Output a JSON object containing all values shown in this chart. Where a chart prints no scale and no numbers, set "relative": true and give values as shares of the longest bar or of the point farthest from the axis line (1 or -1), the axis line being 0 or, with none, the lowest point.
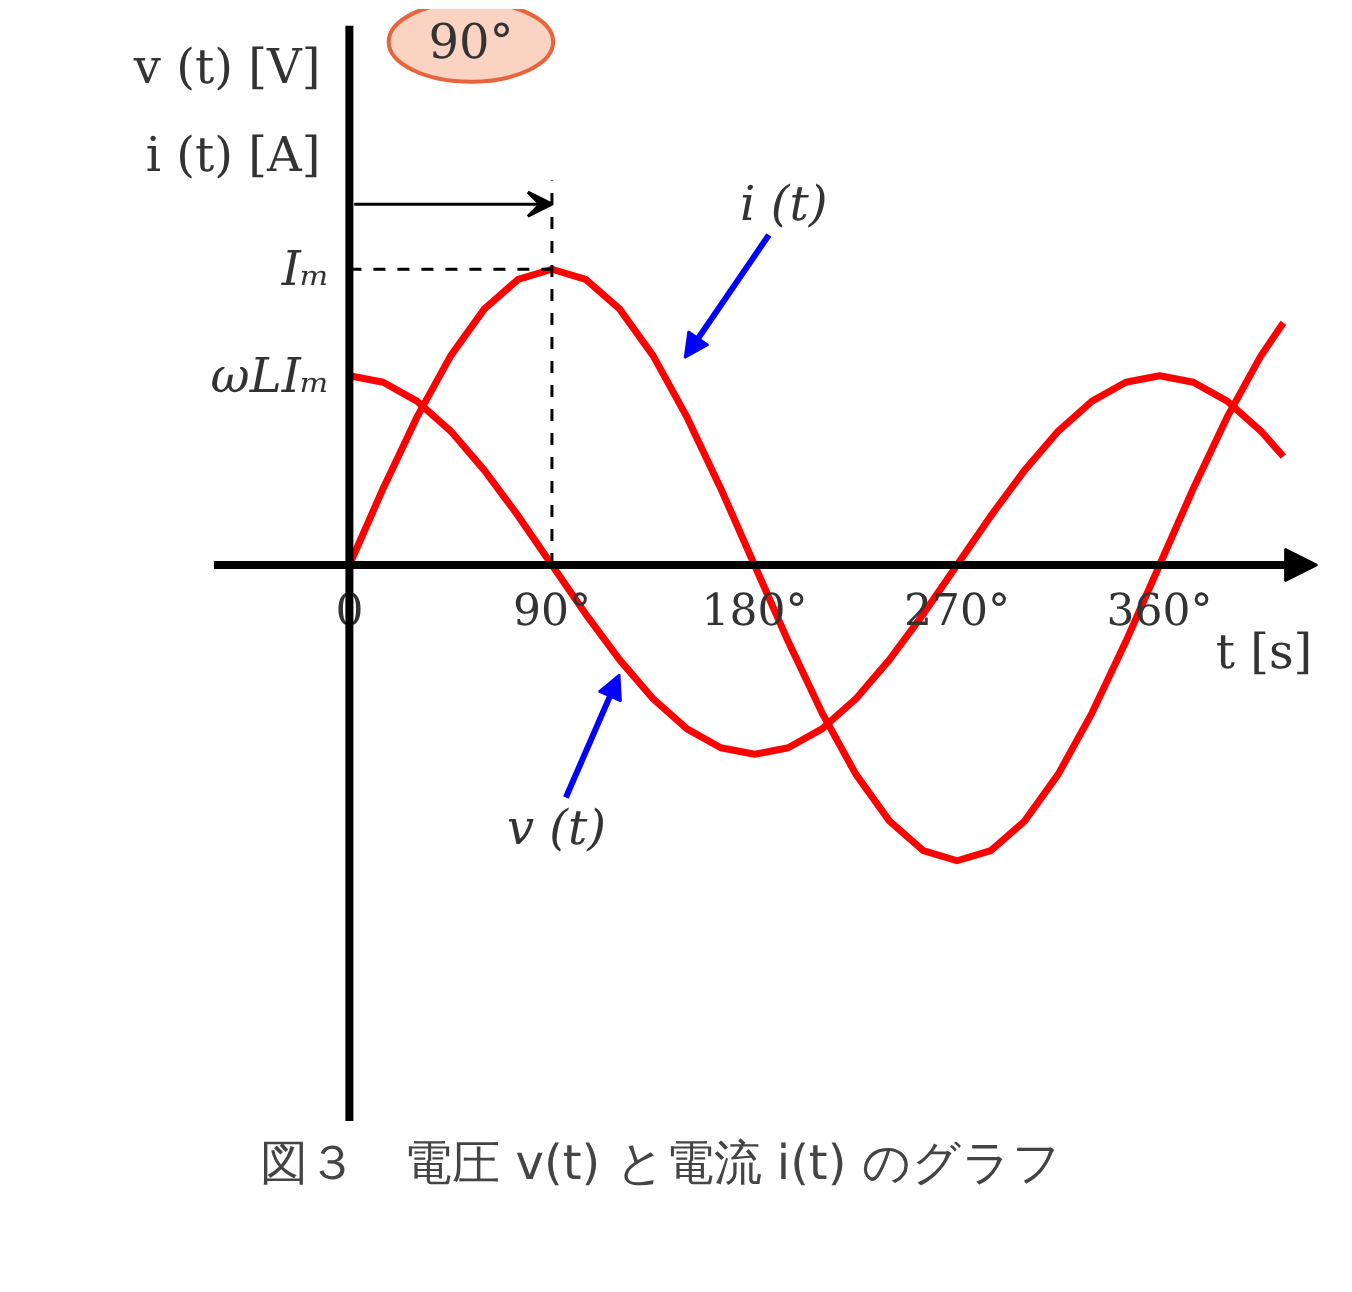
{
  "chart_data": {
    "type": "line",
    "relative": true,
    "title": "図３　電圧 v(t) と電流 i(t) のグラフ",
    "xlabel": "t [s]",
    "ylabel": "v (t) [V]\ni (t) [A]",
    "x": [
      0,
      15,
      30,
      45,
      60,
      75,
      90,
      105,
      120,
      135,
      150,
      165,
      180,
      195,
      210,
      225,
      240,
      255,
      270,
      285,
      300,
      315,
      330,
      345,
      360,
      375,
      390,
      405,
      415
    ],
    "xlim": [
      0,
      430
    ],
    "xticks": [
      0,
      {
        "value": 90,
        "label": "90°"
      },
      {
        "value": 180,
        "label": "180°"
      },
      {
        "value": 270,
        "label": "270°"
      },
      {
        "value": 360,
        "label": "360°"
      }
    ],
    "series": [
      {
        "name": "i (t)",
        "color": "#ff0000",
        "values": [
          0,
          0.259,
          0.5,
          0.707,
          0.866,
          0.966,
          1,
          0.966,
          0.866,
          0.707,
          0.5,
          0.259,
          0,
          -0.259,
          -0.5,
          -0.707,
          -0.866,
          -0.966,
          -1,
          -0.966,
          -0.866,
          -0.707,
          -0.5,
          -0.259,
          0,
          0.259,
          0.5,
          0.707,
          0.819
        ]
      },
      {
        "name": "v (t)",
        "color": "#ff0000",
        "values": [
          0.64,
          0.618,
          0.554,
          0.453,
          0.32,
          0.166,
          0,
          -0.166,
          -0.32,
          -0.453,
          -0.554,
          -0.618,
          -0.64,
          -0.618,
          -0.554,
          -0.453,
          -0.32,
          -0.166,
          0,
          0.166,
          0.32,
          0.453,
          0.554,
          0.618,
          0.64,
          0.618,
          0.554,
          0.453,
          0.367
        ]
      }
    ],
    "annotations": [
      "90°",
      {
        "text": "Iₘ",
        "x": 90,
        "y": 1
      },
      {
        "text": "ωLIₘ",
        "x": 0,
        "y": 0.64
      }
    ],
    "ref_lines": [
      {
        "axis": "x",
        "value": 90,
        "line_style": "dashed",
        "color": "#000000"
      }
    ],
    "grid": false,
    "marker": "none",
    "line_style": "solid"
  }
}
